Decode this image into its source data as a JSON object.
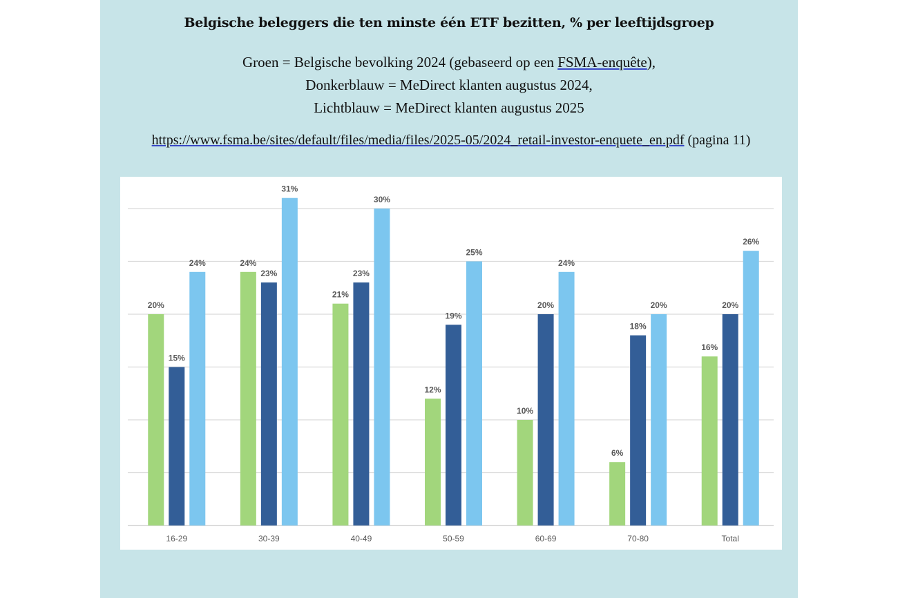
{
  "header": {
    "title": "Belgische beleggers die ten minste één ETF bezitten, % per leeftijdsgroep",
    "legend_line1_prefix": "Groen = Belgische bevolking 2024 (gebaseerd op een ",
    "legend_line1_link": "FSMA-enquête",
    "legend_line1_suffix": "),",
    "legend_line2": "Donkerblauw = MeDirect klanten augustus 2024,",
    "legend_line3": "Lichtblauw = MeDirect klanten augustus 2025",
    "source_link": "https://www.fsma.be/sites/default/files/media/files/2025-05/2024_retail-investor-enquete_en.pdf",
    "source_suffix": " (pagina 11)"
  },
  "chart_data": {
    "type": "bar",
    "categories": [
      "16-29",
      "30-39",
      "40-49",
      "50-59",
      "60-69",
      "70-80",
      "Total"
    ],
    "series": [
      {
        "values": [
          20,
          24,
          21,
          12,
          10,
          6,
          16
        ],
        "color": "#a2d67c"
      },
      {
        "values": [
          15,
          23,
          23,
          19,
          20,
          18,
          20
        ],
        "color": "#335e97"
      },
      {
        "values": [
          24,
          31,
          30,
          25,
          24,
          20,
          26
        ],
        "color": "#7cc6ef"
      }
    ],
    "value_labels": [
      [
        "20%",
        "24%",
        "21%",
        "12%",
        "10%",
        "6%",
        "16%"
      ],
      [
        "15%",
        "23%",
        "23%",
        "19%",
        "20%",
        "18%",
        "20%"
      ],
      [
        "24%",
        "31%",
        "30%",
        "25%",
        "24%",
        "20%",
        "26%"
      ]
    ],
    "ylim": [
      0,
      30
    ],
    "grid": true,
    "legend": "none"
  }
}
